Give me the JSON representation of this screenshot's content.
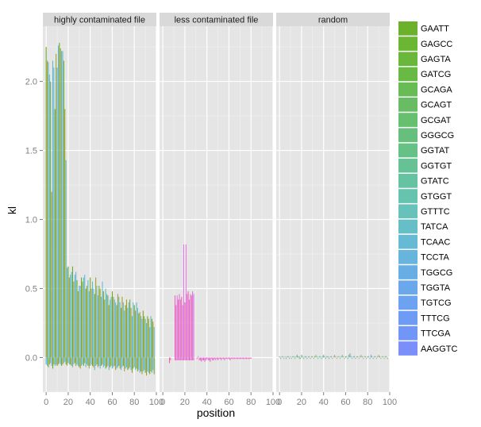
{
  "chart_data": {
    "type": "bar",
    "facets": [
      "highly contaminated file",
      "less contaminated file",
      "random"
    ],
    "xlabel": "position",
    "ylabel": "kl",
    "x_ticks": [
      "0",
      "20",
      "40",
      "60",
      "80",
      "100"
    ],
    "y_ticks": [
      "0.0",
      "0.5",
      "1.0",
      "1.5",
      "2.0"
    ],
    "xlim": [
      -3,
      100
    ],
    "ylim": [
      -0.25,
      2.4
    ],
    "grid": true,
    "legend_position": "right",
    "legend": [
      {
        "label": "GAATT",
        "color": "#6CB12C"
      },
      {
        "label": "GAGCC",
        "color": "#6BB632"
      },
      {
        "label": "GAGTA",
        "color": "#6AB83B"
      },
      {
        "label": "GATCG",
        "color": "#69BA45"
      },
      {
        "label": "GCAGA",
        "color": "#68BB55"
      },
      {
        "label": "GCAGT",
        "color": "#68BD64"
      },
      {
        "label": "GCGAT",
        "color": "#67BF70"
      },
      {
        "label": "GGGCG",
        "color": "#66C07C"
      },
      {
        "label": "GGTAT",
        "color": "#66C187"
      },
      {
        "label": "GGTGT",
        "color": "#66C294"
      },
      {
        "label": "GTATC",
        "color": "#66C3A1"
      },
      {
        "label": "GTGGT",
        "color": "#66C3AD"
      },
      {
        "label": "GTTTC",
        "color": "#66C2BA"
      },
      {
        "label": "TATCA",
        "color": "#66BFC7"
      },
      {
        "label": "TCAAC",
        "color": "#66BAD3"
      },
      {
        "label": "TCCTA",
        "color": "#67B4DD"
      },
      {
        "label": "TGGCG",
        "color": "#68AEE5"
      },
      {
        "label": "TGGTA",
        "color": "#6AA8EB"
      },
      {
        "label": "TGTCG",
        "color": "#6CA2F0"
      },
      {
        "label": "TTTCG",
        "color": "#6E9CF5"
      },
      {
        "label": "TTCGA",
        "color": "#7196F8"
      },
      {
        "label": "AAGGTC",
        "color": "#7A8FFA"
      }
    ],
    "panels": [
      {
        "facet": "highly contaminated file",
        "colors": [
          "#6AA820",
          "#A59B1F",
          "#57B9C9",
          "#5FB5D6"
        ],
        "x": [
          0,
          1,
          2,
          3,
          4,
          5,
          6,
          7,
          8,
          9,
          10,
          11,
          12,
          13,
          14,
          15,
          16,
          17,
          18,
          19,
          20,
          21,
          22,
          23,
          24,
          25,
          26,
          27,
          28,
          29,
          30,
          31,
          32,
          33,
          34,
          35,
          36,
          37,
          38,
          39,
          40,
          41,
          42,
          43,
          44,
          45,
          46,
          47,
          48,
          49,
          50,
          51,
          52,
          53,
          54,
          55,
          56,
          57,
          58,
          59,
          60,
          61,
          62,
          63,
          64,
          65,
          66,
          67,
          68,
          69,
          70,
          71,
          72,
          73,
          74,
          75,
          76,
          77,
          78,
          79,
          80,
          81,
          82,
          83,
          84,
          85,
          86,
          87,
          88,
          89,
          90,
          91,
          92,
          93,
          94,
          95,
          96,
          97,
          98
        ],
        "values": [
          2.25,
          2.15,
          2.14,
          2.05,
          2.0,
          1.2,
          2.15,
          2.1,
          1.8,
          2.2,
          2.1,
          2.26,
          2.28,
          2.24,
          2.22,
          2.22,
          2.15,
          1.8,
          1.43,
          0.65,
          0.66,
          0.58,
          0.6,
          0.62,
          0.66,
          0.55,
          0.6,
          0.62,
          0.56,
          0.48,
          0.52,
          0.52,
          0.58,
          0.55,
          0.58,
          0.6,
          0.5,
          0.52,
          0.56,
          0.48,
          0.58,
          0.5,
          0.55,
          0.5,
          0.46,
          0.58,
          0.52,
          0.45,
          0.52,
          0.5,
          0.44,
          0.55,
          0.48,
          0.42,
          0.5,
          0.46,
          0.45,
          0.38,
          0.42,
          0.44,
          0.48,
          0.44,
          0.42,
          0.4,
          0.38,
          0.46,
          0.44,
          0.4,
          0.36,
          0.44,
          0.4,
          0.34,
          0.38,
          0.42,
          0.36,
          0.4,
          0.42,
          0.36,
          0.3,
          0.4,
          0.38,
          0.34,
          0.4,
          0.36,
          0.32,
          0.33,
          0.3,
          0.28,
          0.34,
          0.3,
          0.28,
          0.25,
          0.3,
          0.28,
          0.22,
          0.3,
          0.28,
          0.26,
          0.22
        ],
        "neg": [
          -0.05,
          -0.06,
          -0.07,
          -0.05,
          -0.04,
          -0.06,
          -0.08,
          -0.05,
          -0.06,
          -0.05,
          -0.06,
          -0.05,
          -0.04,
          -0.05,
          -0.06,
          -0.05,
          -0.04,
          -0.03,
          -0.05,
          -0.06,
          -0.04,
          -0.05,
          -0.05,
          -0.06,
          -0.07,
          -0.05,
          -0.04,
          -0.06,
          -0.05,
          -0.06,
          -0.07,
          -0.08,
          -0.06,
          -0.05,
          -0.06,
          -0.04,
          -0.07,
          -0.05,
          -0.06,
          -0.08,
          -0.06,
          -0.05,
          -0.06,
          -0.07,
          -0.09,
          -0.06,
          -0.05,
          -0.07,
          -0.06,
          -0.08,
          -0.06,
          -0.05,
          -0.07,
          -0.06,
          -0.08,
          -0.07,
          -0.06,
          -0.09,
          -0.07,
          -0.06,
          -0.08,
          -0.07,
          -0.06,
          -0.09,
          -0.08,
          -0.07,
          -0.06,
          -0.08,
          -0.09,
          -0.07,
          -0.06,
          -0.1,
          -0.08,
          -0.07,
          -0.09,
          -0.08,
          -0.07,
          -0.09,
          -0.11,
          -0.08,
          -0.07,
          -0.09,
          -0.08,
          -0.1,
          -0.09,
          -0.11,
          -0.1,
          -0.12,
          -0.1,
          -0.09,
          -0.11,
          -0.13,
          -0.1,
          -0.11,
          -0.12,
          -0.1,
          -0.11,
          -0.09,
          -0.12
        ]
      },
      {
        "facet": "less contaminated file",
        "colors": [
          "#E86BD5",
          "#D876E6",
          "#F05FA6"
        ],
        "x": [
          6,
          7,
          11,
          12,
          13,
          14,
          15,
          16,
          17,
          18,
          19,
          20,
          21,
          22,
          23,
          24,
          25,
          26,
          27,
          28,
          30,
          31,
          32,
          33,
          34,
          35,
          36,
          37,
          38,
          39,
          40,
          41,
          42,
          43,
          44,
          45,
          46,
          47,
          48,
          49,
          50,
          51,
          52,
          53,
          54,
          55,
          56,
          57,
          58,
          59,
          60,
          61,
          62,
          63,
          64,
          65,
          66,
          67,
          68,
          69,
          70,
          71,
          72,
          73,
          74,
          75,
          76,
          77,
          78,
          79,
          80
        ],
        "values": [
          -0.04,
          -0.02,
          0.45,
          0.38,
          0.45,
          0.42,
          0.46,
          0.42,
          0.44,
          0.38,
          0.82,
          0.4,
          0.82,
          0.46,
          0.48,
          0.42,
          0.46,
          0.45,
          0.48,
          0.46,
          0.0,
          -0.01,
          0.01,
          -0.02,
          -0.02,
          -0.03,
          -0.02,
          -0.02,
          -0.03,
          -0.02,
          -0.01,
          -0.02,
          -0.02,
          -0.03,
          -0.01,
          -0.02,
          -0.02,
          -0.01,
          -0.02,
          -0.01,
          -0.02,
          -0.01,
          -0.01,
          -0.02,
          -0.01,
          -0.01,
          -0.02,
          -0.01,
          -0.01,
          -0.01,
          -0.01,
          -0.02,
          -0.01,
          -0.01,
          -0.01,
          -0.01,
          -0.01,
          -0.01,
          -0.01,
          -0.01,
          -0.01,
          -0.01,
          -0.01,
          -0.01,
          -0.01,
          -0.01,
          -0.01,
          -0.01,
          -0.01,
          -0.01,
          -0.01
        ],
        "neg": [
          0,
          0,
          -0.02,
          -0.02,
          -0.02,
          -0.02,
          -0.02,
          -0.02,
          -0.02,
          -0.02,
          -0.02,
          -0.02,
          -0.02,
          -0.02,
          -0.02,
          -0.02,
          -0.02,
          -0.02,
          -0.02,
          -0.02,
          0,
          0,
          0,
          0,
          0,
          0,
          0,
          0,
          0,
          0,
          0,
          0,
          0,
          0,
          0,
          0,
          0,
          0,
          0,
          0,
          0,
          0,
          0,
          0,
          0,
          0,
          0,
          0,
          0,
          0,
          0,
          0,
          0,
          0,
          0,
          0,
          0,
          0,
          0,
          0,
          0,
          0,
          0,
          0,
          0,
          0,
          0,
          0,
          0,
          0,
          0
        ]
      },
      {
        "facet": "random",
        "colors": [
          "#7DB36A",
          "#66BFC7",
          "#C9A94C",
          "#6CA2F0"
        ],
        "x": [
          0,
          1,
          2,
          3,
          4,
          5,
          6,
          7,
          8,
          9,
          10,
          11,
          12,
          13,
          14,
          15,
          16,
          17,
          18,
          19,
          20,
          21,
          22,
          23,
          24,
          25,
          26,
          27,
          28,
          29,
          30,
          31,
          32,
          33,
          34,
          35,
          36,
          37,
          38,
          39,
          40,
          41,
          42,
          43,
          44,
          45,
          46,
          47,
          48,
          49,
          50,
          51,
          52,
          53,
          54,
          55,
          56,
          57,
          58,
          59,
          60,
          61,
          62,
          63,
          64,
          65,
          66,
          67,
          68,
          69,
          70,
          71,
          72,
          73,
          74,
          75,
          76,
          77,
          78,
          79,
          80,
          81,
          82,
          83,
          84,
          85,
          86,
          87,
          88,
          89,
          90,
          91,
          92,
          93,
          94,
          95,
          96,
          97,
          98
        ],
        "values": [
          0.01,
          0.0,
          0.01,
          0.01,
          0.0,
          0.01,
          0.0,
          0.01,
          0.01,
          0.0,
          0.01,
          0.0,
          0.01,
          0.01,
          0.0,
          0.01,
          0.02,
          0.01,
          0.01,
          0.0,
          0.02,
          0.01,
          0.0,
          0.01,
          0.01,
          0.0,
          0.01,
          0.01,
          0.0,
          0.01,
          0.01,
          0.0,
          0.01,
          0.02,
          0.01,
          0.0,
          0.01,
          0.01,
          0.0,
          0.01,
          0.02,
          0.01,
          0.0,
          0.01,
          0.01,
          0.0,
          0.01,
          0.01,
          0.0,
          0.01,
          0.02,
          0.01,
          0.0,
          0.01,
          0.01,
          0.0,
          0.01,
          0.02,
          0.01,
          0.0,
          0.01,
          0.01,
          0.0,
          0.02,
          0.03,
          0.01,
          0.0,
          0.01,
          0.01,
          0.0,
          0.01,
          0.01,
          0.0,
          0.01,
          0.02,
          0.01,
          0.0,
          0.01,
          0.01,
          0.0,
          0.01,
          0.01,
          0.0,
          0.02,
          0.01,
          0.0,
          0.01,
          0.01,
          0.0,
          0.01,
          0.02,
          0.01,
          0.0,
          0.01,
          0.01,
          0.0,
          0.01,
          0.01,
          0.0
        ],
        "neg": [
          0,
          -0.01,
          0,
          0,
          -0.01,
          0,
          -0.01,
          0,
          0,
          -0.01,
          0,
          -0.01,
          0,
          0,
          -0.01,
          0,
          0,
          0,
          -0.01,
          -0.01,
          0,
          0,
          -0.01,
          0,
          0,
          -0.01,
          0,
          0,
          -0.01,
          0,
          0,
          -0.01,
          0,
          0,
          0,
          -0.01,
          0,
          0,
          -0.01,
          0,
          0,
          0,
          -0.01,
          0,
          0,
          -0.01,
          0,
          0,
          -0.01,
          0,
          0,
          0,
          -0.01,
          0,
          0,
          -0.01,
          0,
          0,
          0,
          -0.01,
          0,
          0,
          -0.01,
          0,
          0,
          0,
          -0.01,
          0,
          0,
          -0.01,
          0,
          0,
          -0.01,
          0,
          0,
          0,
          -0.01,
          0,
          0,
          -0.01,
          0,
          0,
          -0.01,
          0,
          0,
          -0.01,
          0,
          0,
          -0.01,
          0,
          0,
          0,
          -0.01,
          0,
          0,
          -0.01,
          0,
          0,
          -0.01
        ]
      }
    ]
  }
}
